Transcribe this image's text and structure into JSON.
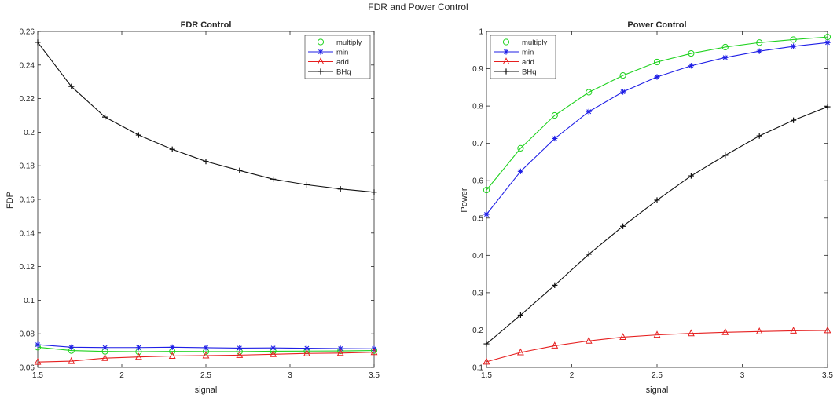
{
  "figure": {
    "title": "FDR and Power Control"
  },
  "chart_data": [
    {
      "id": "fdr",
      "type": "line",
      "title": "FDR Control",
      "xlabel": "signal",
      "ylabel": "FDP",
      "xlim": [
        1.5,
        3.5
      ],
      "ylim": [
        0.06,
        0.26
      ],
      "xticks": [
        1.5,
        2,
        2.5,
        3,
        3.5
      ],
      "xtick_labels": [
        "1.5",
        "2",
        "2.5",
        "3",
        "3.5"
      ],
      "yticks": [
        0.06,
        0.08,
        0.1,
        0.12,
        0.14,
        0.16,
        0.18,
        0.2,
        0.22,
        0.24,
        0.26
      ],
      "ytick_labels": [
        "0.06",
        "0.08",
        "0.1",
        "0.12",
        "0.14",
        "0.16",
        "0.18",
        "0.2",
        "0.22",
        "0.24",
        "0.26"
      ],
      "grid": false,
      "legend_position": "top-right",
      "x": [
        1.5,
        1.7,
        1.9,
        2.1,
        2.3,
        2.5,
        2.7,
        2.9,
        3.1,
        3.3,
        3.5
      ],
      "series": [
        {
          "name": "multiply",
          "color": "#1fd21f",
          "marker": "circle",
          "values": [
            0.072,
            0.07,
            0.0695,
            0.0693,
            0.0695,
            0.0694,
            0.0694,
            0.0696,
            0.0697,
            0.0698,
            0.07
          ]
        },
        {
          "name": "min",
          "color": "#1f1fe6",
          "marker": "star",
          "values": [
            0.0735,
            0.072,
            0.0718,
            0.0718,
            0.072,
            0.0717,
            0.0715,
            0.0716,
            0.0714,
            0.0712,
            0.0711
          ]
        },
        {
          "name": "add",
          "color": "#e61f1f",
          "marker": "triangle",
          "values": [
            0.0632,
            0.0637,
            0.0655,
            0.0662,
            0.0668,
            0.067,
            0.0673,
            0.0678,
            0.0683,
            0.0685,
            0.069
          ]
        },
        {
          "name": "BHq",
          "color": "#111111",
          "marker": "plus",
          "values": [
            0.2535,
            0.2272,
            0.209,
            0.1983,
            0.1898,
            0.1826,
            0.1772,
            0.172,
            0.1687,
            0.1662,
            0.1643
          ]
        }
      ]
    },
    {
      "id": "power",
      "type": "line",
      "title": "Power Control",
      "xlabel": "signal",
      "ylabel": "Power",
      "xlim": [
        1.5,
        3.5
      ],
      "ylim": [
        0.1,
        1.0
      ],
      "xticks": [
        1.5,
        2,
        2.5,
        3,
        3.5
      ],
      "xtick_labels": [
        "1.5",
        "2",
        "2.5",
        "3",
        "3.5"
      ],
      "yticks": [
        0.1,
        0.2,
        0.3,
        0.4,
        0.5,
        0.6,
        0.7,
        0.8,
        0.9,
        1.0
      ],
      "ytick_labels": [
        "0.1",
        "0.2",
        "0.3",
        "0.4",
        "0.5",
        "0.6",
        "0.7",
        "0.8",
        "0.9",
        "1"
      ],
      "grid": false,
      "legend_position": "top-left",
      "x": [
        1.5,
        1.7,
        1.9,
        2.1,
        2.3,
        2.5,
        2.7,
        2.9,
        3.1,
        3.3,
        3.5
      ],
      "series": [
        {
          "name": "multiply",
          "color": "#1fd21f",
          "marker": "circle",
          "values": [
            0.575,
            0.687,
            0.775,
            0.837,
            0.882,
            0.918,
            0.941,
            0.958,
            0.97,
            0.978,
            0.985
          ]
        },
        {
          "name": "min",
          "color": "#1f1fe6",
          "marker": "star",
          "values": [
            0.51,
            0.625,
            0.713,
            0.785,
            0.838,
            0.878,
            0.908,
            0.93,
            0.947,
            0.96,
            0.97
          ]
        },
        {
          "name": "add",
          "color": "#e61f1f",
          "marker": "triangle",
          "values": [
            0.115,
            0.14,
            0.158,
            0.171,
            0.181,
            0.187,
            0.191,
            0.194,
            0.196,
            0.198,
            0.199
          ]
        },
        {
          "name": "BHq",
          "color": "#111111",
          "marker": "plus",
          "values": [
            0.163,
            0.24,
            0.32,
            0.403,
            0.478,
            0.548,
            0.613,
            0.668,
            0.72,
            0.762,
            0.798
          ]
        }
      ]
    }
  ]
}
